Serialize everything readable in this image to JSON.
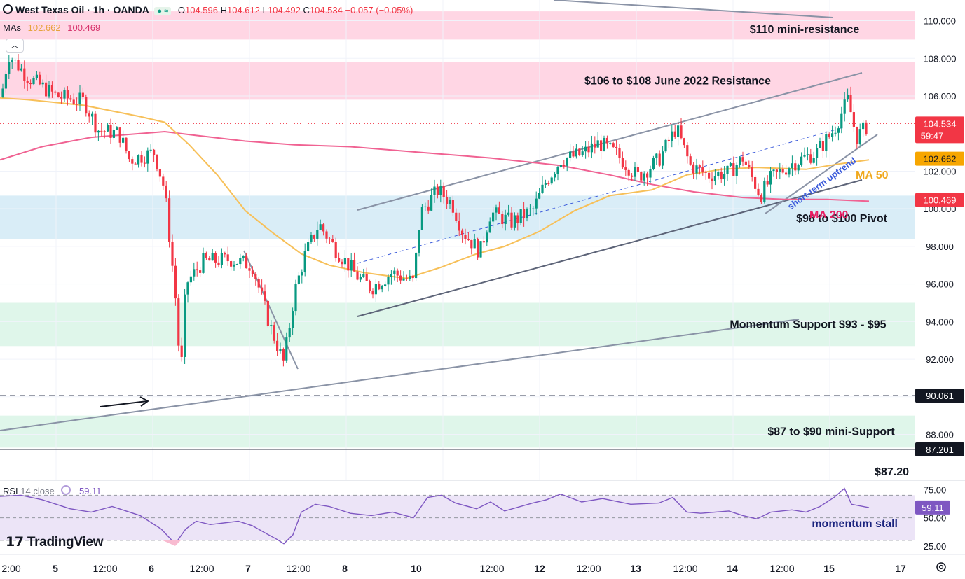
{
  "header": {
    "symbol": "West Texas Oil · 1h · OANDA",
    "open_label": "O",
    "open": "104.596",
    "high_label": "H",
    "high": "104.612",
    "low_label": "L",
    "low": "104.492",
    "close_label": "C",
    "close": "104.534",
    "change": "−0.057 (−0.05%)",
    "mas_label": "MAs",
    "ma50_value": "102.662",
    "ma200_value": "100.469"
  },
  "rsi": {
    "label": "RSI",
    "params": "14 close",
    "value": "59.11",
    "ticks": [
      "75.00",
      "50.00",
      "25.00"
    ],
    "annotation": "momentum stall"
  },
  "branding": {
    "logo_text": "TradingView"
  },
  "colors": {
    "up": "#089981",
    "down": "#f23645",
    "ma50": "#f7c059",
    "ma200": "#f06292",
    "resistance_zone": "#ffd6e4",
    "pivot_zone": "#d9edf7",
    "support_zone": "#dff6ea",
    "rsi_line": "#7e57c2",
    "rsi_band": "#ece4f7",
    "trendline": "#8a93a6"
  },
  "chart_data": {
    "type": "candlestick",
    "title": "West Texas Oil · 1h · OANDA",
    "y_axis": {
      "ylim": [
        85.6,
        111.1
      ],
      "ticks": [
        "110.000",
        "108.000",
        "106.000",
        "102.000",
        "100.000",
        "98.000",
        "96.000",
        "94.000",
        "92.000",
        "90.000",
        "88.000"
      ],
      "ticks_values": [
        110,
        108,
        106,
        102,
        100,
        98,
        96,
        94,
        92,
        90,
        88
      ]
    },
    "x_axis": {
      "tick_labels": [
        "2:00",
        "5",
        "12:00",
        "6",
        "12:00",
        "7",
        "12:00",
        "8",
        "10",
        "12:00",
        "12",
        "12:00",
        "13",
        "12:00",
        "14",
        "12:00",
        "15",
        "17"
      ]
    },
    "price_badges": [
      {
        "text": "104.534",
        "sub": "59:47",
        "value": 104.534,
        "kind": "last"
      },
      {
        "text": "102.662",
        "value": 102.662,
        "kind": "ma50"
      },
      {
        "text": "100.469",
        "value": 100.469,
        "kind": "ma200"
      },
      {
        "text": "90.061",
        "value": 90.061,
        "kind": "level"
      },
      {
        "text": "87.201",
        "value": 87.201,
        "kind": "level"
      }
    ],
    "zones": [
      {
        "label": "$110 mini-resistance",
        "from": 109.0,
        "to": 110.5,
        "kind": "resistance"
      },
      {
        "label": "$106 to $108 June 2022 Resistance",
        "from": 105.8,
        "to": 107.8,
        "kind": "resistance"
      },
      {
        "label": "$98 to $100 Pivot",
        "from": 98.4,
        "to": 100.7,
        "kind": "pivot"
      },
      {
        "label": "Momentum Support $93 - $95",
        "from": 92.7,
        "to": 95.0,
        "kind": "support"
      },
      {
        "label": "$87 to $90 mini-Support",
        "from": 87.3,
        "to": 89.0,
        "kind": "support"
      }
    ],
    "level_labels": [
      {
        "text": "$87.20",
        "value": 87.2
      }
    ],
    "annotations": [
      {
        "text": "MA 50",
        "color": "ma50"
      },
      {
        "text": "MA 200",
        "color": "ma200"
      },
      {
        "text": "short-term uptrend",
        "color": "#3b5bdb"
      }
    ],
    "ma50_points": [
      [
        0,
        105.9
      ],
      [
        40,
        105.8
      ],
      [
        120,
        105.5
      ],
      [
        200,
        104.9
      ],
      [
        235,
        104.6
      ],
      [
        270,
        103.4
      ],
      [
        310,
        101.8
      ],
      [
        350,
        99.9
      ],
      [
        390,
        98.7
      ],
      [
        430,
        97.6
      ],
      [
        470,
        97.0
      ],
      [
        520,
        96.6
      ],
      [
        580,
        96.3
      ],
      [
        630,
        96.9
      ],
      [
        680,
        97.6
      ],
      [
        720,
        98.0
      ],
      [
        770,
        98.8
      ],
      [
        820,
        99.9
      ],
      [
        870,
        100.7
      ],
      [
        930,
        101.0
      ],
      [
        980,
        101.8
      ],
      [
        1030,
        102.1
      ],
      [
        1080,
        102.2
      ],
      [
        1150,
        102.1
      ],
      [
        1200,
        102.4
      ],
      [
        1240,
        102.6
      ]
    ],
    "ma200_points": [
      [
        0,
        102.6
      ],
      [
        60,
        103.3
      ],
      [
        130,
        103.8
      ],
      [
        200,
        104.0
      ],
      [
        235,
        104.1
      ],
      [
        280,
        103.9
      ],
      [
        350,
        103.6
      ],
      [
        420,
        103.4
      ],
      [
        500,
        103.3
      ],
      [
        600,
        103.0
      ],
      [
        700,
        102.7
      ],
      [
        800,
        102.3
      ],
      [
        870,
        101.8
      ],
      [
        930,
        101.3
      ],
      [
        990,
        100.9
      ],
      [
        1060,
        100.6
      ],
      [
        1120,
        100.5
      ],
      [
        1180,
        100.5
      ],
      [
        1240,
        100.4
      ]
    ],
    "rsi_points": [
      [
        0,
        69
      ],
      [
        30,
        70
      ],
      [
        60,
        66
      ],
      [
        100,
        58
      ],
      [
        130,
        55
      ],
      [
        160,
        60
      ],
      [
        180,
        56
      ],
      [
        200,
        52
      ],
      [
        230,
        40
      ],
      [
        250,
        27
      ],
      [
        265,
        40
      ],
      [
        280,
        47
      ],
      [
        300,
        44
      ],
      [
        340,
        47
      ],
      [
        360,
        43
      ],
      [
        380,
        36
      ],
      [
        395,
        31
      ],
      [
        405,
        27
      ],
      [
        418,
        35
      ],
      [
        430,
        55
      ],
      [
        450,
        62
      ],
      [
        470,
        60
      ],
      [
        500,
        54
      ],
      [
        530,
        52
      ],
      [
        560,
        55
      ],
      [
        590,
        50
      ],
      [
        610,
        68
      ],
      [
        630,
        70
      ],
      [
        650,
        63
      ],
      [
        680,
        58
      ],
      [
        700,
        64
      ],
      [
        720,
        56
      ],
      [
        760,
        63
      ],
      [
        780,
        66
      ],
      [
        800,
        71
      ],
      [
        830,
        64
      ],
      [
        860,
        67
      ],
      [
        900,
        62
      ],
      [
        940,
        63
      ],
      [
        960,
        68
      ],
      [
        980,
        55
      ],
      [
        1000,
        54
      ],
      [
        1040,
        56
      ],
      [
        1060,
        52
      ],
      [
        1080,
        49
      ],
      [
        1100,
        55
      ],
      [
        1130,
        57
      ],
      [
        1150,
        55
      ],
      [
        1170,
        60
      ],
      [
        1190,
        68
      ],
      [
        1205,
        76
      ],
      [
        1215,
        62
      ],
      [
        1240,
        59
      ]
    ],
    "rsi_ylim": [
      20,
      82
    ]
  }
}
